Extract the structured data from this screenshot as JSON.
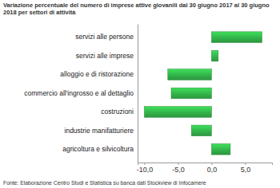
{
  "chart_data": {
    "type": "bar",
    "orientation": "horizontal",
    "title": "Variazione percentuale del numero di imprese attive giovanili dal 30 giugno 2017 al 30 giugno 2018 per settori di attività",
    "subtitle": "Fonte: Elaborazione Centro Studi e Statistica su banca dati Stockview di Infocamere",
    "categories": [
      "servizi alle persone",
      "servizi alle imprese",
      "alloggio e di ristorazione",
      "commercio all'ingrosso e al dettaglio",
      "costruzioni",
      "industrie manifatturiere",
      "agricoltura e silvicoltura"
    ],
    "values": [
      7.5,
      1.0,
      -6.5,
      -6.0,
      -10.0,
      -3.0,
      2.8
    ],
    "color": "#33b54a",
    "xlim": [
      -11,
      9
    ],
    "xticks": [
      {
        "value": -10,
        "label": "-10,0"
      },
      {
        "value": -5,
        "label": "-5,0"
      },
      {
        "value": 0,
        "label": "0,0"
      },
      {
        "value": 5,
        "label": "5,0"
      }
    ],
    "grid": false
  }
}
